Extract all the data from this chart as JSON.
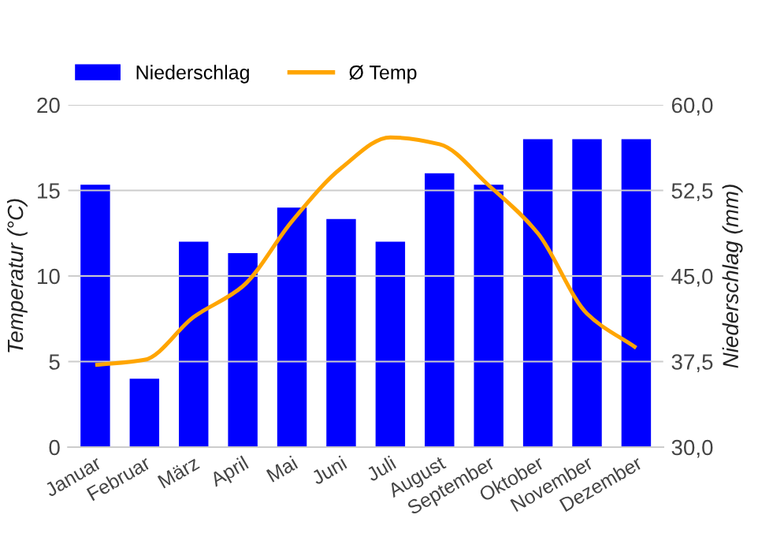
{
  "chart_data": {
    "type": "bar",
    "categories": [
      "Januar",
      "Februar",
      "März",
      "April",
      "Mai",
      "Juni",
      "Juli",
      "August",
      "September",
      "Oktober",
      "November",
      "Dezember"
    ],
    "series": [
      {
        "name": "Niederschlag",
        "axis": "y2",
        "color": "#0000ff",
        "values": [
          53,
          36,
          48,
          47,
          51,
          50,
          48,
          54,
          53,
          57,
          57,
          57
        ]
      },
      {
        "name": "Ø Temp",
        "type": "line",
        "color": "#ffa500",
        "values": [
          4.8,
          5.1,
          7.6,
          9.4,
          13.2,
          16.3,
          18.1,
          17.7,
          15.3,
          12.5,
          7.8,
          5.8
        ]
      }
    ],
    "ylabel": "Temperatur (°C)",
    "y2label": "Niederschlag (mm)",
    "ylim": [
      0,
      20
    ],
    "yticks": [
      0,
      5,
      10,
      15,
      20
    ],
    "y2lim": [
      30,
      60
    ],
    "y2ticks": [
      {
        "value": 30,
        "label": "30,0"
      },
      {
        "value": 37.5,
        "label": "37,5"
      },
      {
        "value": 45,
        "label": "45,0"
      },
      {
        "value": 52.5,
        "label": "52,5"
      },
      {
        "value": 60,
        "label": "60,0"
      }
    ],
    "grid": "y",
    "legend": "top left",
    "marker": "none",
    "line_style": "solid"
  }
}
